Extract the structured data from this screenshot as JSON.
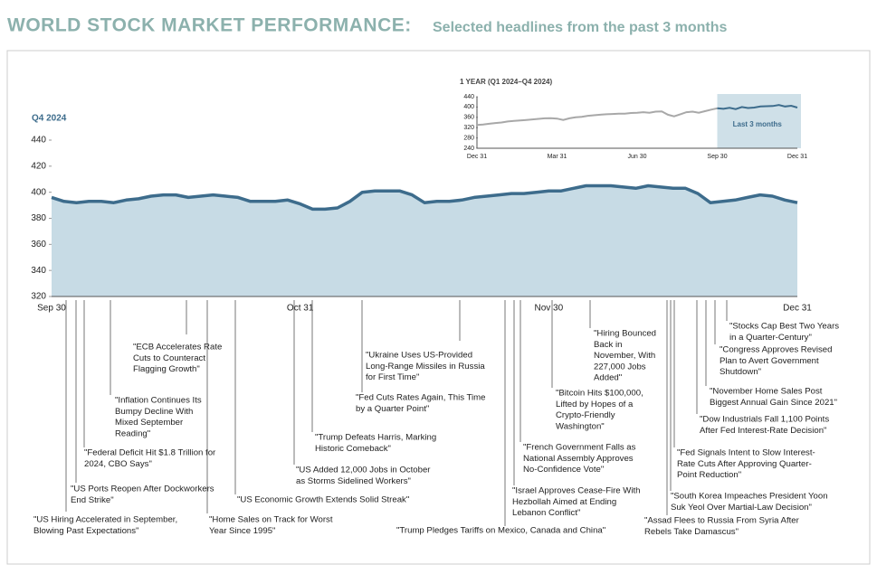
{
  "header": {
    "title": "WORLD STOCK MARKET PERFORMANCE:",
    "subtitle": "Selected headlines from the past 3 months"
  },
  "chart_data": [
    {
      "type": "area",
      "title": "Q4 2024",
      "color": "#3d6c8c",
      "fill": "#c7dbe5",
      "categories": [
        "Sep 30",
        null,
        null,
        null,
        null,
        null,
        null,
        null,
        null,
        null,
        null,
        null,
        null,
        null,
        null,
        null,
        null,
        null,
        null,
        null,
        "Oct 31",
        null,
        null,
        null,
        null,
        null,
        null,
        null,
        null,
        null,
        null,
        null,
        null,
        null,
        null,
        null,
        null,
        null,
        null,
        null,
        "Nov 30",
        null,
        null,
        null,
        null,
        null,
        null,
        null,
        null,
        null,
        null,
        null,
        null,
        null,
        null,
        null,
        null,
        null,
        null,
        null,
        "Dec 31"
      ],
      "values": [
        396,
        393,
        392,
        393,
        393,
        392,
        394,
        395,
        397,
        398,
        398,
        396,
        397,
        398,
        397,
        396,
        393,
        393,
        393,
        394,
        391,
        387,
        387,
        388,
        393,
        400,
        401,
        401,
        401,
        398,
        392,
        393,
        393,
        394,
        396,
        397,
        398,
        399,
        399,
        400,
        401,
        401,
        403,
        405,
        405,
        405,
        404,
        403,
        405,
        404,
        403,
        403,
        399,
        392,
        393,
        394,
        396,
        398,
        397,
        394,
        392
      ],
      "ylim": [
        320,
        440
      ],
      "yticks": [
        320,
        340,
        360,
        380,
        400,
        420,
        440
      ],
      "annotations": [
        {
          "lines": [
            "\"US Hiring Accelerated in September,",
            "Blowing Past Expectations\""
          ]
        },
        {
          "lines": [
            "\"US Ports Reopen After Dockworkers",
            "End Strike\""
          ]
        },
        {
          "lines": [
            "\"Federal Deficit Hit $1.8 Trillion for",
            "2024, CBO Says\""
          ]
        },
        {
          "lines": [
            "\"Inflation Continues Its",
            "Bumpy Decline With",
            "Mixed September",
            "Reading\""
          ]
        },
        {
          "lines": [
            "\"ECB Accelerates Rate",
            "Cuts to Counteract",
            "Flagging Growth\""
          ]
        },
        {
          "lines": [
            "\"Home Sales on Track for Worst",
            "Year Since 1995\""
          ]
        },
        {
          "lines": [
            "\"US Economic Growth Extends Solid Streak\""
          ]
        },
        {
          "lines": [
            "\"US Added 12,000 Jobs in October",
            "as Storms Sidelined Workers\""
          ]
        },
        {
          "lines": [
            "\"Trump Defeats Harris, Marking",
            "Historic Comeback\""
          ]
        },
        {
          "lines": [
            "\"Fed Cuts Rates Again, This Time",
            "by a Quarter Point\""
          ]
        },
        {
          "lines": [
            "\"Ukraine Uses US-Provided",
            "Long-Range Missiles in Russia",
            "for First Time\""
          ]
        },
        {
          "lines": [
            "\"Trump Pledges Tariffs on Mexico, Canada and China\""
          ]
        },
        {
          "lines": [
            "\"Israel Approves Cease-Fire With",
            "Hezbollah Aimed at Ending",
            "Lebanon Conflict\""
          ]
        },
        {
          "lines": [
            "\"French Government Falls as",
            "National Assembly Approves",
            "No-Confidence Vote\""
          ]
        },
        {
          "lines": [
            "\"Bitcoin Hits $100,000,",
            "Lifted by Hopes of a",
            "Crypto-Friendly",
            "Washington\""
          ]
        },
        {
          "lines": [
            "\"Hiring Bounced",
            "Back in",
            "November, With",
            "227,000 Jobs",
            "Added\""
          ]
        },
        {
          "lines": [
            "\"Assad Flees to Russia From Syria After",
            "Rebels Take Damascus\""
          ]
        },
        {
          "lines": [
            "\"South Korea Impeaches President Yoon",
            "Suk Yeol Over Martial-Law Decision\""
          ]
        },
        {
          "lines": [
            "\"Fed Signals Intent to Slow Interest-",
            "Rate Cuts After Approving Quarter-",
            "Point Reduction\""
          ]
        },
        {
          "lines": [
            "\"Dow Industrials Fall 1,100 Points",
            "After Fed Interest-Rate Decision\""
          ]
        },
        {
          "lines": [
            "\"November Home Sales Post",
            "Biggest Annual Gain Since 2021\""
          ]
        },
        {
          "lines": [
            "\"Congress Approves Revised",
            "Plan to Avert Government",
            "Shutdown\""
          ]
        },
        {
          "lines": [
            "\"Stocks Cap Best Two Years",
            "in a Quarter-Century\""
          ]
        }
      ]
    },
    {
      "type": "line",
      "title": "1 YEAR (Q1 2024–Q4 2024)",
      "highlight_label": "Last 3 months",
      "highlight_color": "#cfe0e8",
      "categories": [
        "Dec 31",
        null,
        null,
        null,
        null,
        null,
        null,
        null,
        null,
        null,
        null,
        null,
        null,
        "Mar 31",
        null,
        null,
        null,
        null,
        null,
        null,
        null,
        null,
        null,
        null,
        null,
        null,
        "Jun 30",
        null,
        null,
        null,
        null,
        null,
        null,
        null,
        null,
        null,
        null,
        null,
        null,
        "Sep 30",
        null,
        null,
        null,
        null,
        null,
        null,
        null,
        null,
        null,
        null,
        null,
        null,
        "Dec 31"
      ],
      "series": [
        {
          "color": "#a8a8a8",
          "values": [
            330,
            332,
            335,
            338,
            340,
            344,
            346,
            348,
            350,
            352,
            354,
            356,
            357,
            355,
            350,
            356,
            360,
            362,
            366,
            368,
            370,
            372,
            373,
            374,
            374,
            377,
            378,
            380,
            378,
            382,
            383,
            370,
            364,
            372,
            380,
            382,
            378,
            384,
            390,
            395,
            null,
            null,
            null,
            null,
            null,
            null,
            null,
            null,
            null,
            null,
            null,
            null,
            null
          ]
        },
        {
          "color": "#3d6c8c",
          "values": [
            null,
            null,
            null,
            null,
            null,
            null,
            null,
            null,
            null,
            null,
            null,
            null,
            null,
            null,
            null,
            null,
            null,
            null,
            null,
            null,
            null,
            null,
            null,
            null,
            null,
            null,
            null,
            null,
            null,
            null,
            null,
            null,
            null,
            null,
            null,
            null,
            null,
            null,
            null,
            395,
            393,
            397,
            392,
            400,
            396,
            398,
            402,
            403,
            404,
            408,
            402,
            405,
            398
          ]
        }
      ],
      "ylim": [
        240,
        440
      ],
      "yticks": [
        240,
        280,
        320,
        360,
        400,
        440
      ]
    }
  ]
}
